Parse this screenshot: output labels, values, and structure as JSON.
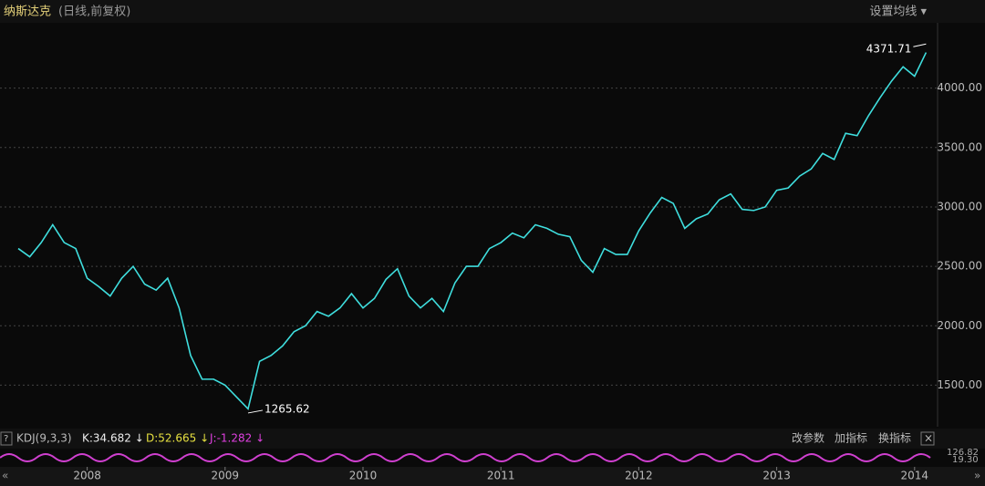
{
  "header": {
    "title": "纳斯达克",
    "subtitle": "(日线,前复权)",
    "ma_button": "设置均线 ▾"
  },
  "chart_data": {
    "type": "line",
    "categories": [
      null,
      null,
      null,
      null,
      null,
      null,
      "2008",
      null,
      null,
      null,
      null,
      null,
      null,
      null,
      null,
      null,
      null,
      null,
      "2009",
      null,
      null,
      null,
      null,
      null,
      null,
      null,
      null,
      null,
      null,
      null,
      "2010",
      null,
      null,
      null,
      null,
      null,
      null,
      null,
      null,
      null,
      null,
      null,
      "2011",
      null,
      null,
      null,
      null,
      null,
      null,
      null,
      null,
      null,
      null,
      null,
      "2012",
      null,
      null,
      null,
      null,
      null,
      null,
      null,
      null,
      null,
      null,
      null,
      "2013",
      null,
      null,
      null,
      null,
      null,
      null,
      null,
      null,
      null,
      null,
      null,
      "2014",
      null
    ],
    "series": [
      {
        "name": "纳斯达克",
        "color": "#3fdede",
        "values": [
          2650,
          2580,
          2700,
          2850,
          2700,
          2650,
          2400,
          2330,
          2250,
          2400,
          2500,
          2350,
          2300,
          2400,
          2150,
          1750,
          1550,
          1550,
          1500,
          1400,
          1300,
          1700,
          1750,
          1830,
          1950,
          2000,
          2120,
          2080,
          2150,
          2270,
          2150,
          2230,
          2390,
          2480,
          2250,
          2150,
          2230,
          2120,
          2360,
          2500,
          2500,
          2650,
          2700,
          2780,
          2740,
          2850,
          2820,
          2770,
          2750,
          2550,
          2450,
          2650,
          2600,
          2600,
          2800,
          2950,
          3080,
          3030,
          2820,
          2900,
          2940,
          3060,
          3110,
          2980,
          2970,
          3000,
          3140,
          3160,
          3260,
          3320,
          3450,
          3400,
          3620,
          3600,
          3770,
          3920,
          4060,
          4180,
          4100,
          4300
        ]
      }
    ],
    "ylim": [
      1150,
      4550
    ],
    "yticks": [
      {
        "value": 1500,
        "label": "1500.00"
      },
      {
        "value": 2000,
        "label": "2000.00"
      },
      {
        "value": 2500,
        "label": "2500.00"
      },
      {
        "value": 3000,
        "label": "3000.00"
      },
      {
        "value": 3500,
        "label": "3500.00"
      },
      {
        "value": 4000,
        "label": "4000.00"
      }
    ],
    "grid": true,
    "high": 4371.71,
    "low": 1265.62
  },
  "indicator": {
    "name": "KDJ(9,3,3)",
    "k": "K:34.682 ↓",
    "d": "D:52.665 ↓",
    "j": "J:-1.282 ↓",
    "buttons": [
      "改参数",
      "加指标",
      "换指标"
    ],
    "scale_top": "126.82",
    "scale_bottom": "19.30"
  }
}
